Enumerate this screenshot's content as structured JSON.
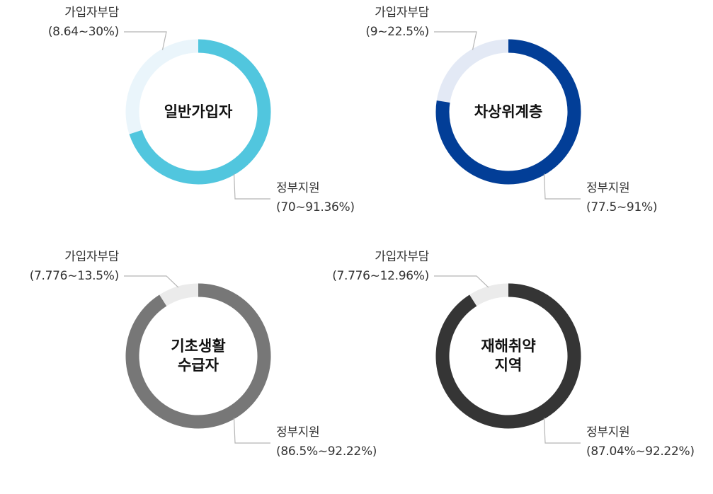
{
  "chart_data": [
    {
      "type": "pie",
      "center_label": [
        "일반가입자"
      ],
      "slices": [
        {
          "label": "가입자부담",
          "range": "(8.64~30%)",
          "value": 30,
          "color": "#eaf5fb"
        },
        {
          "label": "정부지원",
          "range": "(70~91.36%)",
          "value": 70,
          "color": "#51c6de"
        }
      ]
    },
    {
      "type": "pie",
      "center_label": [
        "차상위계층"
      ],
      "slices": [
        {
          "label": "가입자부담",
          "range": "(9~22.5%)",
          "value": 22.5,
          "color": "#e3e9f5"
        },
        {
          "label": "정부지원",
          "range": "(77.5~91%)",
          "value": 77.5,
          "color": "#023e97"
        }
      ]
    },
    {
      "type": "pie",
      "center_label": [
        "기초생활",
        "수급자"
      ],
      "slices": [
        {
          "label": "가입자부담",
          "range": "(7.776~13.5%)",
          "value": 9,
          "color": "#ebebeb"
        },
        {
          "label": "정부지원",
          "range": "(86.5%~92.22%)",
          "value": 91,
          "color": "#777777"
        }
      ]
    },
    {
      "type": "pie",
      "center_label": [
        "재해취약",
        "지역"
      ],
      "slices": [
        {
          "label": "가입자부담",
          "range": "(7.776~12.96%)",
          "value": 9,
          "color": "#ebebeb"
        },
        {
          "label": "정부지원",
          "range": "(87.04%~92.22%)",
          "value": 91,
          "color": "#353535"
        }
      ]
    }
  ]
}
